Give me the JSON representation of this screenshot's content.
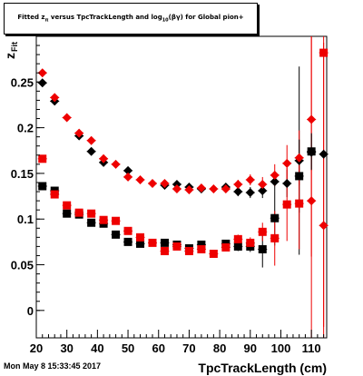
{
  "title": {
    "part1": "Fitted z",
    "sub1": "π",
    "part2": " versus TpcTrackLength and log",
    "sub2": "10",
    "part3": "(βγ) for Global pion+"
  },
  "footer": {
    "timestamp": "Mon May  8 15:33:45 2017"
  },
  "chart_data": {
    "type": "scatter",
    "title": "Fitted zπ versus TpcTrackLength and log10(βγ) for Global pion+",
    "xlabel": "TpcTrackLength (cm)",
    "ylabel_main": "z",
    "ylabel_sub": "Fit",
    "xlim": [
      20,
      115
    ],
    "ylim": [
      -0.03,
      0.3
    ],
    "xticks": [
      20,
      30,
      40,
      50,
      60,
      70,
      80,
      90,
      100,
      110
    ],
    "yticks": [
      0,
      0.05,
      0.1,
      0.15,
      0.2,
      0.25
    ],
    "ytick_labels": [
      "0",
      "0.05",
      "0.1",
      "0.15",
      "0.2",
      "0.25"
    ],
    "grid": false,
    "colors": {
      "black": "#000000",
      "red": "#ee0000"
    },
    "series": [
      {
        "marker": "diamond",
        "color": "#000000",
        "points": [
          {
            "x": 22,
            "y": 0.249,
            "err": 0.004
          },
          {
            "x": 26,
            "y": 0.229,
            "err": 0.004
          },
          {
            "x": 34,
            "y": 0.191,
            "err": 0.003
          },
          {
            "x": 38,
            "y": 0.174,
            "err": 0.003
          },
          {
            "x": 42,
            "y": 0.162,
            "err": 0.003
          },
          {
            "x": 50,
            "y": 0.153,
            "err": 0.003
          },
          {
            "x": 62,
            "y": 0.137,
            "err": 0.003
          },
          {
            "x": 66,
            "y": 0.138,
            "err": 0.003
          },
          {
            "x": 70,
            "y": 0.135,
            "err": 0.003
          },
          {
            "x": 74,
            "y": 0.133,
            "err": 0.003
          },
          {
            "x": 82,
            "y": 0.135,
            "err": 0.004
          },
          {
            "x": 86,
            "y": 0.13,
            "err": 0.005
          },
          {
            "x": 90,
            "y": 0.129,
            "err": 0.006
          },
          {
            "x": 94,
            "y": 0.131,
            "err": 0.008
          },
          {
            "x": 98,
            "y": 0.141,
            "err": 0.01
          },
          {
            "x": 102,
            "y": 0.139,
            "err": 0.015
          },
          {
            "x": 106,
            "y": 0.164,
            "err": 0.103
          },
          {
            "x": 110,
            "y": 0.173,
            "err": 0.02
          },
          {
            "x": 114,
            "y": 0.171,
            "err": 0.005
          }
        ]
      },
      {
        "marker": "diamond",
        "color": "#ee0000",
        "points": [
          {
            "x": 22,
            "y": 0.26,
            "err": 0.004
          },
          {
            "x": 26,
            "y": 0.233,
            "err": 0.004
          },
          {
            "x": 30,
            "y": 0.211,
            "err": 0.003
          },
          {
            "x": 34,
            "y": 0.194,
            "err": 0.003
          },
          {
            "x": 38,
            "y": 0.186,
            "err": 0.003
          },
          {
            "x": 42,
            "y": 0.166,
            "err": 0.003
          },
          {
            "x": 46,
            "y": 0.16,
            "err": 0.003
          },
          {
            "x": 50,
            "y": 0.146,
            "err": 0.003
          },
          {
            "x": 54,
            "y": 0.143,
            "err": 0.003
          },
          {
            "x": 58,
            "y": 0.139,
            "err": 0.003
          },
          {
            "x": 62,
            "y": 0.139,
            "err": 0.003
          },
          {
            "x": 66,
            "y": 0.133,
            "err": 0.003
          },
          {
            "x": 70,
            "y": 0.132,
            "err": 0.003
          },
          {
            "x": 74,
            "y": 0.134,
            "err": 0.003
          },
          {
            "x": 78,
            "y": 0.133,
            "err": 0.003
          },
          {
            "x": 82,
            "y": 0.133,
            "err": 0.004
          },
          {
            "x": 86,
            "y": 0.138,
            "err": 0.005
          },
          {
            "x": 90,
            "y": 0.143,
            "err": 0.006
          },
          {
            "x": 94,
            "y": 0.138,
            "err": 0.008
          },
          {
            "x": 98,
            "y": 0.148,
            "err": 0.012
          },
          {
            "x": 102,
            "y": 0.161,
            "err": 0.02
          },
          {
            "x": 106,
            "y": 0.167,
            "err": 0.03
          },
          {
            "x": 110,
            "y": 0.12,
            "err": 0.18
          },
          {
            "x": 110,
            "y": 0.209,
            "err": 0.15
          },
          {
            "x": 114,
            "y": 0.093,
            "err": 0.2
          }
        ]
      },
      {
        "marker": "square",
        "color": "#000000",
        "points": [
          {
            "x": 22,
            "y": 0.136,
            "err": 0.004
          },
          {
            "x": 26,
            "y": 0.131,
            "err": 0.004
          },
          {
            "x": 30,
            "y": 0.106,
            "err": 0.003
          },
          {
            "x": 34,
            "y": 0.105,
            "err": 0.003
          },
          {
            "x": 38,
            "y": 0.096,
            "err": 0.003
          },
          {
            "x": 42,
            "y": 0.095,
            "err": 0.003
          },
          {
            "x": 46,
            "y": 0.083,
            "err": 0.003
          },
          {
            "x": 50,
            "y": 0.075,
            "err": 0.003
          },
          {
            "x": 54,
            "y": 0.073,
            "err": 0.003
          },
          {
            "x": 62,
            "y": 0.074,
            "err": 0.003
          },
          {
            "x": 66,
            "y": 0.072,
            "err": 0.003
          },
          {
            "x": 70,
            "y": 0.068,
            "err": 0.003
          },
          {
            "x": 74,
            "y": 0.072,
            "err": 0.003
          },
          {
            "x": 82,
            "y": 0.073,
            "err": 0.004
          },
          {
            "x": 86,
            "y": 0.07,
            "err": 0.005
          },
          {
            "x": 90,
            "y": 0.07,
            "err": 0.006
          },
          {
            "x": 94,
            "y": 0.067,
            "err": 0.02
          },
          {
            "x": 98,
            "y": 0.101,
            "err": 0.03
          },
          {
            "x": 106,
            "y": 0.147,
            "err": 0.04
          },
          {
            "x": 110,
            "y": 0.174,
            "err": 0.02
          }
        ]
      },
      {
        "marker": "square",
        "color": "#ee0000",
        "points": [
          {
            "x": 22,
            "y": 0.166,
            "err": 0.004
          },
          {
            "x": 26,
            "y": 0.127,
            "err": 0.004
          },
          {
            "x": 30,
            "y": 0.115,
            "err": 0.003
          },
          {
            "x": 34,
            "y": 0.107,
            "err": 0.003
          },
          {
            "x": 38,
            "y": 0.106,
            "err": 0.003
          },
          {
            "x": 42,
            "y": 0.099,
            "err": 0.003
          },
          {
            "x": 46,
            "y": 0.098,
            "err": 0.003
          },
          {
            "x": 50,
            "y": 0.087,
            "err": 0.003
          },
          {
            "x": 54,
            "y": 0.08,
            "err": 0.003
          },
          {
            "x": 58,
            "y": 0.074,
            "err": 0.003
          },
          {
            "x": 62,
            "y": 0.065,
            "err": 0.003
          },
          {
            "x": 66,
            "y": 0.07,
            "err": 0.003
          },
          {
            "x": 70,
            "y": 0.065,
            "err": 0.003
          },
          {
            "x": 74,
            "y": 0.067,
            "err": 0.003
          },
          {
            "x": 78,
            "y": 0.062,
            "err": 0.003
          },
          {
            "x": 82,
            "y": 0.069,
            "err": 0.004
          },
          {
            "x": 86,
            "y": 0.078,
            "err": 0.005
          },
          {
            "x": 90,
            "y": 0.074,
            "err": 0.006
          },
          {
            "x": 94,
            "y": 0.086,
            "err": 0.01
          },
          {
            "x": 98,
            "y": 0.079,
            "err": 0.03
          },
          {
            "x": 102,
            "y": 0.116,
            "err": 0.04
          },
          {
            "x": 106,
            "y": 0.117,
            "err": 0.05
          },
          {
            "x": 114,
            "y": 0.282,
            "err": 0.3
          }
        ]
      }
    ]
  }
}
